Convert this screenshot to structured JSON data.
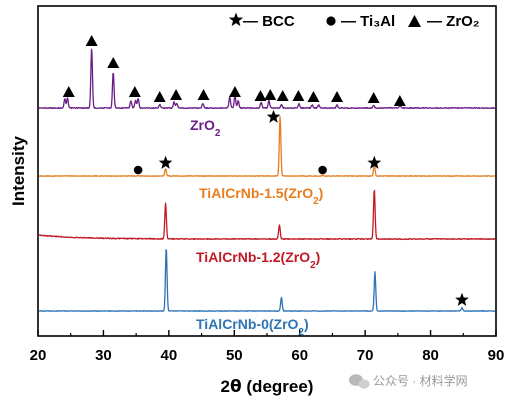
{
  "chart_data": {
    "type": "line",
    "xlabel_prefix": "2",
    "xlabel_theta": "θ",
    "xlabel_suffix": " (degree)",
    "ylabel": "Intensity",
    "xlim": [
      20,
      90
    ],
    "xticks": [
      20,
      30,
      40,
      50,
      60,
      70,
      80,
      90
    ],
    "legend": [
      {
        "symbol": "star",
        "label": "— BCC"
      },
      {
        "symbol": "circle",
        "label": "— Ti₃Al"
      },
      {
        "symbol": "triangle",
        "label": "— ZrO₂"
      }
    ],
    "series": [
      {
        "name": "ZrO2",
        "label_main": "ZrO",
        "label_sub": "2",
        "color": "#6a1d86",
        "peaks": [
          {
            "x": 24.1,
            "h": 0.15
          },
          {
            "x": 24.5,
            "h": 0.16
          },
          {
            "x": 28.2,
            "h": 1.0
          },
          {
            "x": 31.5,
            "h": 0.6
          },
          {
            "x": 34.2,
            "h": 0.12
          },
          {
            "x": 34.9,
            "h": 0.12
          },
          {
            "x": 35.3,
            "h": 0.16
          },
          {
            "x": 38.6,
            "h": 0.06
          },
          {
            "x": 40.8,
            "h": 0.1
          },
          {
            "x": 41.2,
            "h": 0.08
          },
          {
            "x": 45.2,
            "h": 0.08
          },
          {
            "x": 49.3,
            "h": 0.18
          },
          {
            "x": 50.1,
            "h": 0.22
          },
          {
            "x": 50.6,
            "h": 0.12
          },
          {
            "x": 54.1,
            "h": 0.1
          },
          {
            "x": 55.3,
            "h": 0.12
          },
          {
            "x": 57.2,
            "h": 0.06
          },
          {
            "x": 59.9,
            "h": 0.07
          },
          {
            "x": 61.9,
            "h": 0.05
          },
          {
            "x": 62.9,
            "h": 0.05
          },
          {
            "x": 65.7,
            "h": 0.05
          },
          {
            "x": 71.3,
            "h": 0.04
          },
          {
            "x": 75.3,
            "h": 0.04
          }
        ],
        "markers": [
          {
            "symbol": "triangle",
            "x": 24.7
          },
          {
            "symbol": "triangle",
            "x": 28.2
          },
          {
            "symbol": "triangle",
            "x": 31.5
          },
          {
            "symbol": "triangle",
            "x": 34.8
          },
          {
            "symbol": "triangle",
            "x": 38.6
          },
          {
            "symbol": "triangle",
            "x": 41.1
          },
          {
            "symbol": "triangle",
            "x": 45.3
          },
          {
            "symbol": "triangle",
            "x": 50.1
          },
          {
            "symbol": "triangle",
            "x": 54.0
          },
          {
            "symbol": "triangle",
            "x": 55.5
          },
          {
            "symbol": "triangle",
            "x": 57.4
          },
          {
            "symbol": "triangle",
            "x": 59.8
          },
          {
            "symbol": "triangle",
            "x": 62.1
          },
          {
            "symbol": "triangle",
            "x": 65.7
          },
          {
            "symbol": "triangle",
            "x": 71.3
          },
          {
            "symbol": "triangle",
            "x": 75.3
          }
        ]
      },
      {
        "name": "TiAlCrNb-1.5(ZrO2)",
        "label_main": "TiAlCrNb-1.5(ZrO",
        "label_sub": "2",
        "label_end": ")",
        "color": "#e87d1e",
        "peaks": [
          {
            "x": 35.3,
            "h": 0.01
          },
          {
            "x": 39.5,
            "h": 0.12
          },
          {
            "x": 57.0,
            "h": 1.0
          },
          {
            "x": 63.5,
            "h": 0.01
          },
          {
            "x": 71.4,
            "h": 0.18
          }
        ],
        "markers": [
          {
            "symbol": "circle",
            "x": 35.3
          },
          {
            "symbol": "star",
            "x": 39.5
          },
          {
            "symbol": "star",
            "x": 56.0
          },
          {
            "symbol": "circle",
            "x": 63.5
          },
          {
            "symbol": "star",
            "x": 71.4
          }
        ]
      },
      {
        "name": "TiAlCrNb-1.2(ZrO2)",
        "label_main": "TiAlCrNb-1.2(ZrO",
        "label_sub": "2",
        "label_end": ")",
        "color": "#c11a24",
        "peaks": [
          {
            "x": 39.5,
            "h": 0.71
          },
          {
            "x": 56.9,
            "h": 0.28
          },
          {
            "x": 71.4,
            "h": 1.0
          }
        ],
        "markers": []
      },
      {
        "name": "TiAlCrNb-0(ZrO2)",
        "label_main": "TiAlCrNb-0(ZrO",
        "label_sub": "2",
        "label_end": ")",
        "color": "#2c74b3",
        "peaks": [
          {
            "x": 39.6,
            "h": 1.0
          },
          {
            "x": 57.2,
            "h": 0.21
          },
          {
            "x": 71.5,
            "h": 0.61
          },
          {
            "x": 84.8,
            "h": 0.05
          }
        ],
        "markers": [
          {
            "symbol": "star",
            "x": 84.8
          }
        ]
      }
    ]
  },
  "watermark": {
    "text": "公众号 · 材料学网",
    "icon": "wechat-icon"
  }
}
